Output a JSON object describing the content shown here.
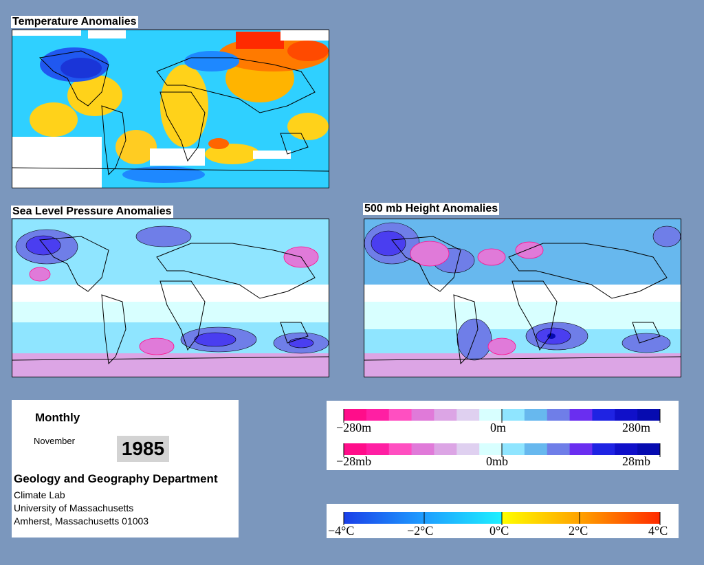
{
  "panels": {
    "temperature": {
      "title": "Temperature Anomalies"
    },
    "slp": {
      "title": "Sea Level Pressure Anomalies"
    },
    "height500": {
      "title": "500 mb Height Anomalies"
    }
  },
  "info": {
    "period": "Monthly",
    "month": "November",
    "year": "1985",
    "department": "Geology and Geography Department",
    "lab": "Climate Lab",
    "university": "University of Massachusetts",
    "address": "Amherst, Massachusetts 01003"
  },
  "legends": {
    "height": {
      "left": "−280m",
      "mid": "0m",
      "right": "280m"
    },
    "pressure": {
      "left": "−28mb",
      "mid": "0mb",
      "right": "28mb"
    },
    "temperature": {
      "t1": "−4°C",
      "t2": "−2°C",
      "t3": "0°C",
      "t4": "2°C",
      "t5": "4°C"
    }
  },
  "colors": {
    "anomaly_scale": [
      "#ff0d8a",
      "#ff1fa3",
      "#ff4fc1",
      "#e07ad9",
      "#dca5e5",
      "#dfd0f0",
      "#d8ffff",
      "#8fe5ff",
      "#67b8ee",
      "#6f7ee8",
      "#6a2ef0",
      "#1f23e3",
      "#1010c9",
      "#060bb0"
    ],
    "temperature_scale": [
      "#1a3fe8",
      "#1e88ff",
      "#2fc8ff",
      "#1ef0ff",
      "#ffff00",
      "#ffc800",
      "#ff8c00",
      "#ff2a00"
    ]
  }
}
